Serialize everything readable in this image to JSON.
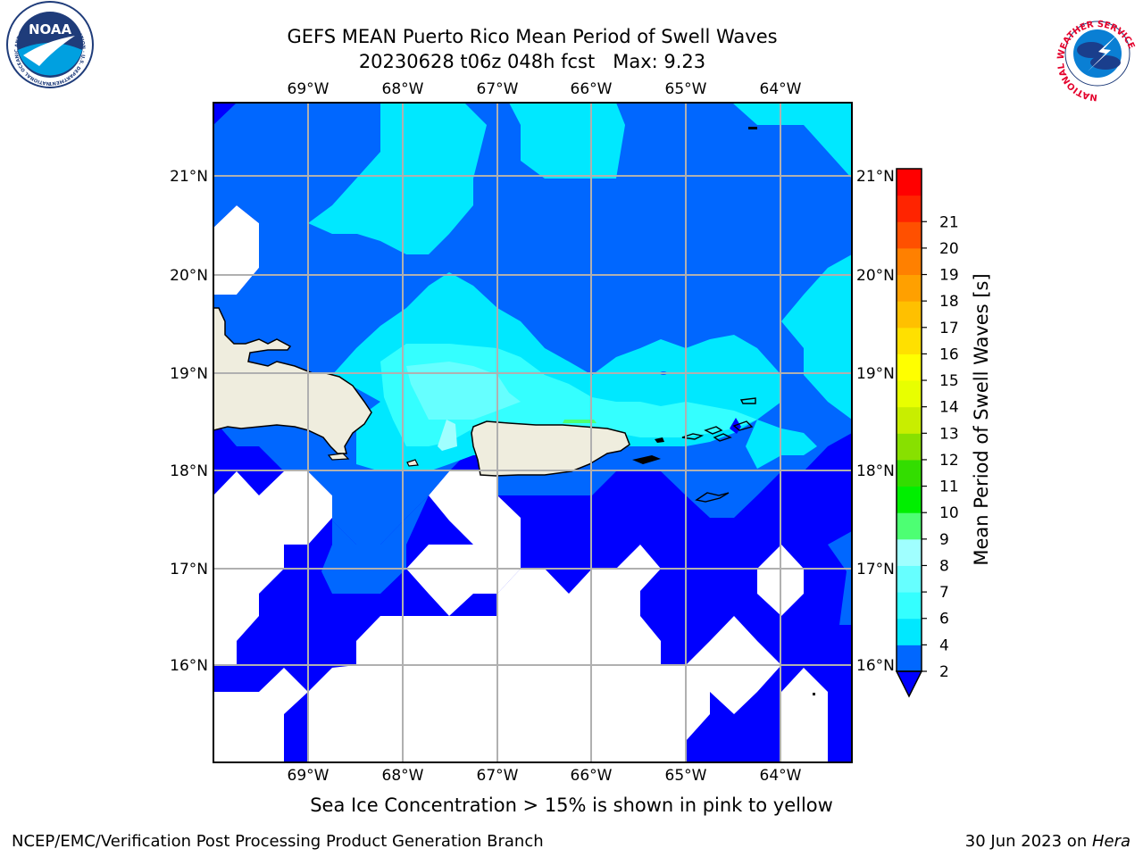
{
  "header": {
    "title_line1": "GEFS MEAN Puerto Rico Mean Period of Swell Waves",
    "title_line2": "20230628 t06z 048h fcst   Max: 9.23"
  },
  "logos": {
    "left": {
      "text": "NOAA",
      "ring_text": "NATIONAL OCEANIC AND ATMOSPHERIC ADMINISTRATION · U.S. DEPARTMENT OF COMMERCE"
    },
    "right": {
      "ring_text": "NATIONAL WEATHER SERVICE"
    }
  },
  "map": {
    "lon_labels": [
      "69°W",
      "68°W",
      "67°W",
      "66°W",
      "65°W",
      "64°W"
    ],
    "lat_labels": [
      "21°N",
      "20°N",
      "19°N",
      "18°N",
      "17°N",
      "16°N"
    ],
    "lon_range": [
      -70.0,
      -63.25
    ],
    "lat_range": [
      15.0,
      21.75
    ],
    "land_color": "#efedde",
    "nodata_color": "#ffffff",
    "grid_color": "#b0b0b0",
    "max_value": 9.23
  },
  "colorbar": {
    "label": "Mean Period of Swell Waves [s]",
    "ticks": [
      "2",
      "4",
      "6",
      "7",
      "8",
      "9",
      "10",
      "11",
      "12",
      "13",
      "14",
      "15",
      "16",
      "17",
      "18",
      "19",
      "20",
      "21"
    ],
    "colors": [
      "#0067ff",
      "#00e8ff",
      "#34ffff",
      "#66ffff",
      "#a0ffff",
      "#4dff73",
      "#00ef00",
      "#33dd00",
      "#88e000",
      "#c8ee00",
      "#e8ff00",
      "#ffff00",
      "#ffe000",
      "#ffc000",
      "#ffa000",
      "#ff8000",
      "#ff5000",
      "#ff2400",
      "#ff0000"
    ],
    "under_color": "#0000ff"
  },
  "footer": {
    "note": "Sea Ice Concentration > 15% is shown in pink to yellow",
    "left": "NCEP/EMC/Verification Post Processing Product Generation Branch",
    "date": "30 Jun 2023 on ",
    "system": "Hera"
  }
}
